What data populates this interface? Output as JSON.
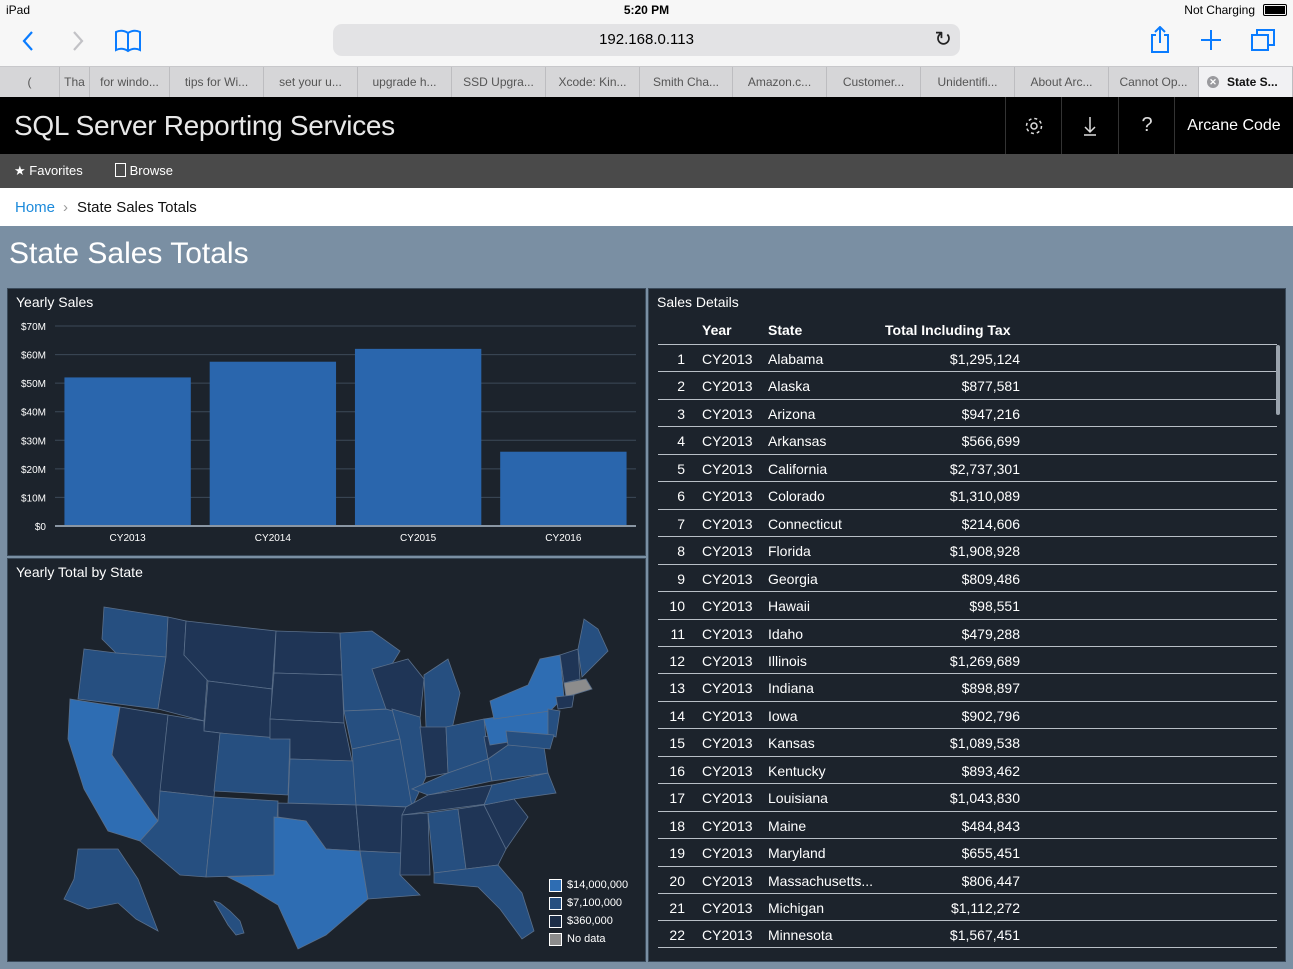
{
  "status_bar": {
    "device": "iPad",
    "time": "5:20 PM",
    "charging": "Not Charging"
  },
  "browser": {
    "url": "192.168.0.113",
    "tabs": [
      {
        "label": "(",
        "active": false
      },
      {
        "label": "Tha",
        "active": false
      },
      {
        "label": "for windo...",
        "active": false
      },
      {
        "label": "tips for Wi...",
        "active": false
      },
      {
        "label": "set your u...",
        "active": false
      },
      {
        "label": "upgrade h...",
        "active": false
      },
      {
        "label": "SSD Upgra...",
        "active": false
      },
      {
        "label": "Xcode: Kin...",
        "active": false
      },
      {
        "label": "Smith Cha...",
        "active": false
      },
      {
        "label": "Amazon.c...",
        "active": false
      },
      {
        "label": "Customer...",
        "active": false
      },
      {
        "label": "Unidentifi...",
        "active": false
      },
      {
        "label": "About Arc...",
        "active": false
      },
      {
        "label": "Cannot Op...",
        "active": false
      },
      {
        "label": "State S...",
        "active": true
      }
    ]
  },
  "header": {
    "app_title": "SQL Server Reporting Services",
    "user": "Arcane Code"
  },
  "nav": {
    "favorites": "Favorites",
    "browse": "Browse"
  },
  "breadcrumb": {
    "home": "Home",
    "current": "State Sales Totals"
  },
  "report": {
    "title": "State Sales Totals",
    "yearly_sales_title": "Yearly Sales",
    "map_title": "Yearly Total by State",
    "details_title": "Sales Details",
    "map_legend": [
      {
        "label": "$14,000,000",
        "color": "#2e6db3"
      },
      {
        "label": "$7,100,000",
        "color": "#264f80"
      },
      {
        "label": "$360,000",
        "color": "#1c2d47"
      },
      {
        "label": "No data",
        "color": "#8c8c8c"
      }
    ],
    "table": {
      "headers": {
        "year": "Year",
        "state": "State",
        "total": "Total Including Tax"
      },
      "rows": [
        {
          "n": "1",
          "year": "CY2013",
          "state": "Alabama",
          "total": "$1,295,124"
        },
        {
          "n": "2",
          "year": "CY2013",
          "state": "Alaska",
          "total": "$877,581"
        },
        {
          "n": "3",
          "year": "CY2013",
          "state": "Arizona",
          "total": "$947,216"
        },
        {
          "n": "4",
          "year": "CY2013",
          "state": "Arkansas",
          "total": "$566,699"
        },
        {
          "n": "5",
          "year": "CY2013",
          "state": "California",
          "total": "$2,737,301"
        },
        {
          "n": "6",
          "year": "CY2013",
          "state": "Colorado",
          "total": "$1,310,089"
        },
        {
          "n": "7",
          "year": "CY2013",
          "state": "Connecticut",
          "total": "$214,606"
        },
        {
          "n": "8",
          "year": "CY2013",
          "state": "Florida",
          "total": "$1,908,928"
        },
        {
          "n": "9",
          "year": "CY2013",
          "state": "Georgia",
          "total": "$809,486"
        },
        {
          "n": "10",
          "year": "CY2013",
          "state": "Hawaii",
          "total": "$98,551"
        },
        {
          "n": "11",
          "year": "CY2013",
          "state": "Idaho",
          "total": "$479,288"
        },
        {
          "n": "12",
          "year": "CY2013",
          "state": "Illinois",
          "total": "$1,269,689"
        },
        {
          "n": "13",
          "year": "CY2013",
          "state": "Indiana",
          "total": "$898,897"
        },
        {
          "n": "14",
          "year": "CY2013",
          "state": "Iowa",
          "total": "$902,796"
        },
        {
          "n": "15",
          "year": "CY2013",
          "state": "Kansas",
          "total": "$1,089,538"
        },
        {
          "n": "16",
          "year": "CY2013",
          "state": "Kentucky",
          "total": "$893,462"
        },
        {
          "n": "17",
          "year": "CY2013",
          "state": "Louisiana",
          "total": "$1,043,830"
        },
        {
          "n": "18",
          "year": "CY2013",
          "state": "Maine",
          "total": "$484,843"
        },
        {
          "n": "19",
          "year": "CY2013",
          "state": "Maryland",
          "total": "$655,451"
        },
        {
          "n": "20",
          "year": "CY2013",
          "state": "Massachusetts...",
          "total": "$806,447"
        },
        {
          "n": "21",
          "year": "CY2013",
          "state": "Michigan",
          "total": "$1,112,272"
        },
        {
          "n": "22",
          "year": "CY2013",
          "state": "Minnesota",
          "total": "$1,567,451"
        }
      ]
    }
  },
  "chart_data": {
    "type": "bar",
    "title": "Yearly Sales",
    "categories": [
      "CY2013",
      "CY2014",
      "CY2015",
      "CY2016"
    ],
    "values": [
      52,
      57.5,
      62,
      26
    ],
    "ylabel": "",
    "xlabel": "",
    "value_unit": "$M",
    "ylim": [
      0,
      70
    ],
    "yticks": [
      "$0",
      "$10M",
      "$20M",
      "$30M",
      "$40M",
      "$50M",
      "$60M",
      "$70M"
    ],
    "grid": true,
    "bar_color": "#2a66ad"
  }
}
